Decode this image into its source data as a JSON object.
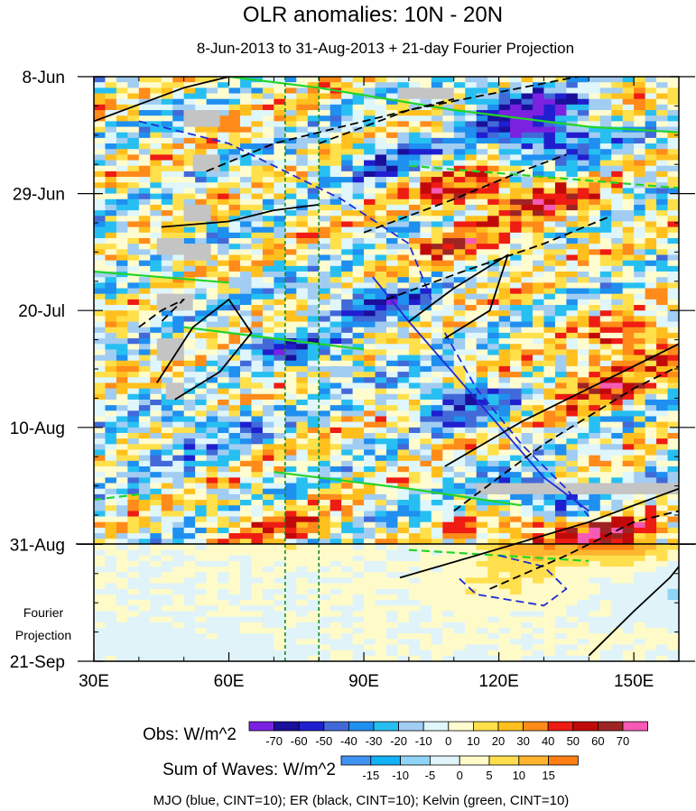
{
  "chart_data": {
    "type": "heatmap",
    "title": "OLR anomalies: 10N - 20N",
    "subtitle": "8-Jun-2013 to 31-Aug-2013 + 21-day Fourier Projection",
    "x_axis": {
      "range": [
        30,
        160
      ],
      "ticks": [
        {
          "value": 30,
          "label": "30E"
        },
        {
          "value": 60,
          "label": "60E"
        },
        {
          "value": 90,
          "label": "90E"
        },
        {
          "value": 120,
          "label": "120E"
        },
        {
          "value": 150,
          "label": "150E"
        }
      ]
    },
    "y_axis": {
      "unit": "day since 8-Jun-2013",
      "range": [
        0,
        105
      ],
      "ticks": [
        {
          "value": 0,
          "label": "8-Jun"
        },
        {
          "value": 21,
          "label": "29-Jun"
        },
        {
          "value": 42,
          "label": "20-Jul"
        },
        {
          "value": 63,
          "label": "10-Aug"
        },
        {
          "value": 84,
          "label": "31-Aug"
        },
        {
          "value": 105,
          "label": "21-Sep"
        }
      ]
    },
    "projection_label": [
      "Fourier",
      "Projection"
    ],
    "observation_end_day": 84,
    "reference_longitudes": [
      72.5,
      80
    ],
    "obs_colorbar": {
      "title": "Obs: W/m^2",
      "levels": [
        -70,
        -60,
        -50,
        -40,
        -30,
        -20,
        -10,
        0,
        10,
        20,
        30,
        40,
        50,
        60,
        70
      ],
      "colors": [
        "#7b22e0",
        "#1a0f9a",
        "#1f1fcf",
        "#4269d8",
        "#1f8ff0",
        "#27bff2",
        "#a2cdf2",
        "#dff6fb",
        "#fffccf",
        "#ffe04a",
        "#ffc01e",
        "#ff8b1a",
        "#ee1c12",
        "#c00a0a",
        "#9e2424",
        "#f55ab4"
      ]
    },
    "waves_colorbar": {
      "title": "Sum of Waves: W/m^2",
      "levels": [
        -15,
        -10,
        -5,
        0,
        5,
        10,
        15
      ],
      "colors": [
        "#3f93f2",
        "#12b2f7",
        "#8fd4f5",
        "#dff3f9",
        "#fffbc9",
        "#ffdf4d",
        "#ffb52e",
        "#ff7e14"
      ]
    },
    "wave_legend": "MJO (blue, CINT=10); ER (black, CINT=10); Kelvin (green, CINT=10)",
    "wave_colors": {
      "mjo": "#1f2bd6",
      "er": "#000000",
      "kelvin": "#22d42a",
      "reference_line": "#1a8a2a"
    },
    "mjo_contours": [
      {
        "sign": "negative",
        "points": [
          [
            40,
            8
          ],
          [
            60,
            12
          ],
          [
            85,
            22
          ],
          [
            100,
            30
          ],
          [
            105,
            40
          ]
        ]
      },
      {
        "sign": "negative",
        "points": [
          [
            108,
            46
          ],
          [
            115,
            56
          ],
          [
            125,
            66
          ],
          [
            135,
            74
          ],
          [
            140,
            79
          ]
        ]
      },
      {
        "sign": "negative",
        "points": [
          [
            120,
            86
          ],
          [
            130,
            88
          ],
          [
            135,
            92
          ],
          [
            130,
            95
          ],
          [
            115,
            93
          ],
          [
            111,
            90
          ]
        ]
      },
      {
        "sign": "positive",
        "points": [
          [
            92,
            36
          ],
          [
            100,
            44
          ],
          [
            115,
            58
          ],
          [
            130,
            72
          ],
          [
            140,
            78
          ]
        ]
      }
    ],
    "er_contours": [
      {
        "sign": "positive",
        "points": [
          [
            30,
            8
          ],
          [
            50,
            2
          ],
          [
            70,
            -2
          ]
        ]
      },
      {
        "sign": "positive",
        "points": [
          [
            45,
            27
          ],
          [
            60,
            26
          ],
          [
            70,
            24
          ],
          [
            80,
            23
          ]
        ]
      },
      {
        "sign": "positive",
        "points": [
          [
            44,
            55
          ],
          [
            52,
            45
          ],
          [
            60,
            40
          ],
          [
            65,
            46
          ],
          [
            58,
            53
          ],
          [
            48,
            58
          ]
        ]
      },
      {
        "sign": "positive",
        "points": [
          [
            100,
            44
          ],
          [
            110,
            38
          ],
          [
            122,
            32
          ],
          [
            118,
            42
          ],
          [
            108,
            47
          ]
        ]
      },
      {
        "sign": "positive",
        "points": [
          [
            108,
            70
          ],
          [
            125,
            62
          ],
          [
            145,
            54
          ],
          [
            160,
            48
          ]
        ]
      },
      {
        "sign": "positive",
        "points": [
          [
            98,
            90
          ],
          [
            115,
            86
          ],
          [
            140,
            80
          ],
          [
            160,
            74
          ]
        ]
      },
      {
        "sign": "positive",
        "points": [
          [
            140,
            104
          ],
          [
            150,
            96
          ],
          [
            158,
            90
          ],
          [
            160,
            88
          ]
        ]
      },
      {
        "sign": "negative",
        "points": [
          [
            55,
            17
          ],
          [
            70,
            12
          ],
          [
            90,
            8
          ],
          [
            110,
            4
          ]
        ]
      },
      {
        "sign": "negative",
        "points": [
          [
            80,
            12
          ],
          [
            100,
            6
          ],
          [
            125,
            2
          ],
          [
            150,
            -2
          ]
        ]
      },
      {
        "sign": "negative",
        "points": [
          [
            90,
            28
          ],
          [
            110,
            22
          ],
          [
            125,
            17
          ],
          [
            135,
            14
          ]
        ]
      },
      {
        "sign": "negative",
        "points": [
          [
            95,
            40
          ],
          [
            112,
            35
          ],
          [
            130,
            30
          ],
          [
            145,
            25
          ]
        ]
      },
      {
        "sign": "negative",
        "points": [
          [
            40,
            45
          ],
          [
            45,
            42
          ],
          [
            50,
            40
          ],
          [
            45,
            44
          ]
        ]
      },
      {
        "sign": "negative",
        "points": [
          [
            110,
            78
          ],
          [
            130,
            66
          ],
          [
            150,
            56
          ],
          [
            160,
            52
          ]
        ]
      },
      {
        "sign": "negative",
        "points": [
          [
            118,
            92
          ],
          [
            135,
            86
          ],
          [
            150,
            80
          ],
          [
            160,
            78
          ]
        ]
      }
    ],
    "kelvin_contours": [
      {
        "sign": "positive",
        "points": [
          [
            50,
            -1
          ],
          [
            80,
            2
          ],
          [
            110,
            6
          ],
          [
            140,
            9
          ],
          [
            160,
            10
          ]
        ]
      },
      {
        "sign": "positive",
        "points": [
          [
            50,
            45
          ],
          [
            70,
            47
          ],
          [
            90,
            49
          ]
        ]
      },
      {
        "sign": "positive",
        "points": [
          [
            30,
            35
          ],
          [
            45,
            36
          ],
          [
            60,
            37
          ]
        ]
      },
      {
        "sign": "positive",
        "points": [
          [
            70,
            71
          ],
          [
            100,
            74
          ],
          [
            125,
            77
          ]
        ]
      },
      {
        "sign": "negative",
        "points": [
          [
            100,
            16
          ],
          [
            130,
            18
          ],
          [
            160,
            20
          ]
        ]
      },
      {
        "sign": "negative",
        "points": [
          [
            100,
            85
          ],
          [
            120,
            86
          ],
          [
            140,
            87
          ]
        ]
      },
      {
        "sign": "negative",
        "points": [
          [
            30,
            76
          ],
          [
            40,
            75
          ]
        ]
      }
    ],
    "missing_data_blocks": [
      [
        50,
        6,
        58,
        9
      ],
      [
        52,
        14,
        58,
        17
      ],
      [
        50,
        23,
        56,
        26
      ],
      [
        44,
        29,
        50,
        32
      ],
      [
        50,
        30,
        56,
        33
      ],
      [
        44,
        39,
        52,
        42
      ],
      [
        44,
        47,
        50,
        51
      ],
      [
        46,
        55,
        50,
        58
      ],
      [
        98,
        2,
        110,
        4
      ],
      [
        115,
        73,
        160,
        75
      ]
    ],
    "anomaly_centers": [
      {
        "lon": 125,
        "day": 5,
        "value": -55
      },
      {
        "lon": 128,
        "day": 10,
        "value": -65
      },
      {
        "lon": 110,
        "day": 20,
        "value": 45
      },
      {
        "lon": 130,
        "day": 22,
        "value": 40
      },
      {
        "lon": 112,
        "day": 30,
        "value": 35
      },
      {
        "lon": 92,
        "day": 40,
        "value": -40
      },
      {
        "lon": 75,
        "day": 48,
        "value": -35
      },
      {
        "lon": 150,
        "day": 48,
        "value": 45
      },
      {
        "lon": 140,
        "day": 55,
        "value": 40
      },
      {
        "lon": 110,
        "day": 58,
        "value": -40
      },
      {
        "lon": 55,
        "day": 62,
        "value": -25
      },
      {
        "lon": 128,
        "day": 75,
        "value": -50
      },
      {
        "lon": 125,
        "day": 81,
        "value": 45
      },
      {
        "lon": 145,
        "day": 82,
        "value": 50
      },
      {
        "lon": 70,
        "day": 80,
        "value": 25
      },
      {
        "lon": 40,
        "day": 68,
        "value": -20
      },
      {
        "lon": 95,
        "day": 15,
        "value": -30
      },
      {
        "lon": 125,
        "day": 88,
        "value": 12
      },
      {
        "lon": 115,
        "day": 92,
        "value": 8
      },
      {
        "lon": 160,
        "day": 92,
        "value": -12
      },
      {
        "lon": 40,
        "day": 102,
        "value": -6
      },
      {
        "lon": 60,
        "day": 104,
        "value": -6
      }
    ]
  }
}
